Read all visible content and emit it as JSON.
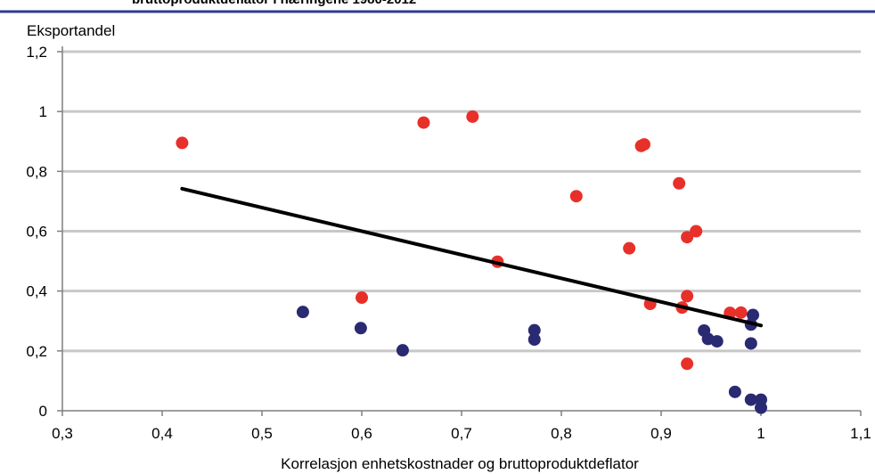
{
  "header": {
    "cut_title": "bruttoproduktdeflator i næringene 1980-2012",
    "rule_color": "#2e3d8f"
  },
  "chart_data": {
    "type": "scatter",
    "title": "",
    "xlabel": "Korrelasjon enhetskostnader og bruttoproduktdeflator",
    "ylabel": "Eksportandel",
    "xlim": [
      0.3,
      1.1
    ],
    "ylim": [
      0,
      1.2
    ],
    "x_ticks": [
      0.3,
      0.4,
      0.5,
      0.6,
      0.7,
      0.8,
      0.9,
      1.0,
      1.1
    ],
    "y_ticks": [
      0,
      0.2,
      0.4,
      0.6,
      0.8,
      1.0,
      1.2
    ],
    "x_tick_labels": [
      "0,3",
      "0,4",
      "0,5",
      "0,6",
      "0,7",
      "0,8",
      "0,9",
      "1",
      "1,1"
    ],
    "y_tick_labels": [
      "0",
      "0,2",
      "0,4",
      "0,6",
      "0,8",
      "1",
      "1,2"
    ],
    "grid": "horizontal",
    "legend": "none",
    "series": [
      {
        "color": "#e8302a",
        "points": [
          [
            0.42,
            0.895
          ],
          [
            0.662,
            0.963
          ],
          [
            0.711,
            0.983
          ],
          [
            0.88,
            0.885
          ],
          [
            0.883,
            0.89
          ],
          [
            0.815,
            0.717
          ],
          [
            0.918,
            0.76
          ],
          [
            0.868,
            0.543
          ],
          [
            0.926,
            0.58
          ],
          [
            0.935,
            0.6
          ],
          [
            0.736,
            0.498
          ],
          [
            0.6,
            0.378
          ],
          [
            0.926,
            0.383
          ],
          [
            0.889,
            0.357
          ],
          [
            0.921,
            0.345
          ],
          [
            0.969,
            0.327
          ],
          [
            0.98,
            0.328
          ],
          [
            0.926,
            0.157
          ]
        ]
      },
      {
        "color": "#2a2a72",
        "points": [
          [
            0.541,
            0.33
          ],
          [
            0.599,
            0.276
          ],
          [
            0.641,
            0.202
          ],
          [
            0.773,
            0.269
          ],
          [
            0.773,
            0.238
          ],
          [
            0.943,
            0.268
          ],
          [
            0.947,
            0.24
          ],
          [
            0.956,
            0.232
          ],
          [
            0.99,
            0.288
          ],
          [
            0.992,
            0.32
          ],
          [
            0.99,
            0.225
          ],
          [
            0.974,
            0.063
          ],
          [
            0.99,
            0.037
          ],
          [
            1.0,
            0.037
          ],
          [
            1.0,
            0.01
          ]
        ]
      }
    ],
    "trendline": {
      "color": "#000000",
      "points": [
        [
          0.42,
          0.742
        ],
        [
          1.0,
          0.285
        ]
      ]
    }
  }
}
